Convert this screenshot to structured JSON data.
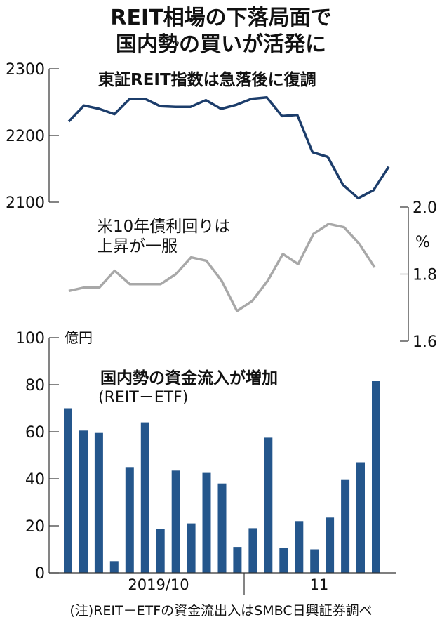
{
  "title_line1": "REIT相場の下落局面で",
  "title_line2": "国内勢の買いが活発に",
  "footnote": "(注)REIT－ETFの資金流出入はSMBC日興証券調べ",
  "colors": {
    "reit_line": "#1c3d6b",
    "yield_line": "#a8a8a8",
    "bars": "#24568c",
    "axis": "#333333"
  },
  "chart_data": [
    {
      "type": "line",
      "title": "東証REIT指数は急落後に復調",
      "axis": "left",
      "ylim": [
        2100,
        2300
      ],
      "ticks": [
        2100,
        2200,
        2300
      ],
      "values": [
        2221,
        2245,
        2240,
        2232,
        2255,
        2255,
        2244,
        2243,
        2243,
        2253,
        2240,
        2246,
        2255,
        2257,
        2229,
        2231,
        2175,
        2168,
        2126,
        2106,
        2118,
        2153
      ]
    },
    {
      "type": "line",
      "title_lines": [
        "米10年債利回りは",
        "上昇が一服"
      ],
      "axis": "right",
      "ylabel": "%",
      "ylim": [
        1.6,
        2.0
      ],
      "ticks": [
        "1.6",
        "1.8",
        "2.0"
      ],
      "values": [
        1.75,
        1.76,
        1.76,
        1.81,
        1.77,
        1.77,
        1.77,
        1.8,
        1.85,
        1.84,
        1.78,
        1.69,
        1.72,
        1.78,
        1.86,
        1.83,
        1.92,
        1.95,
        1.94,
        1.89,
        1.82
      ]
    },
    {
      "type": "bar",
      "title": "国内勢の資金流入が増加",
      "subtitle": "(REIT－ETF)",
      "ylabel": "億円",
      "ylim": [
        0,
        100
      ],
      "ticks": [
        0,
        20,
        40,
        60,
        80,
        100
      ],
      "values": [
        70,
        60.5,
        59.5,
        5,
        45,
        64,
        18.5,
        43.5,
        21,
        42.5,
        38,
        11,
        19,
        57.5,
        10.5,
        22,
        10,
        23.5,
        39.5,
        47,
        81.5
      ],
      "x_labels": [
        "2019/10",
        "11"
      ]
    }
  ]
}
